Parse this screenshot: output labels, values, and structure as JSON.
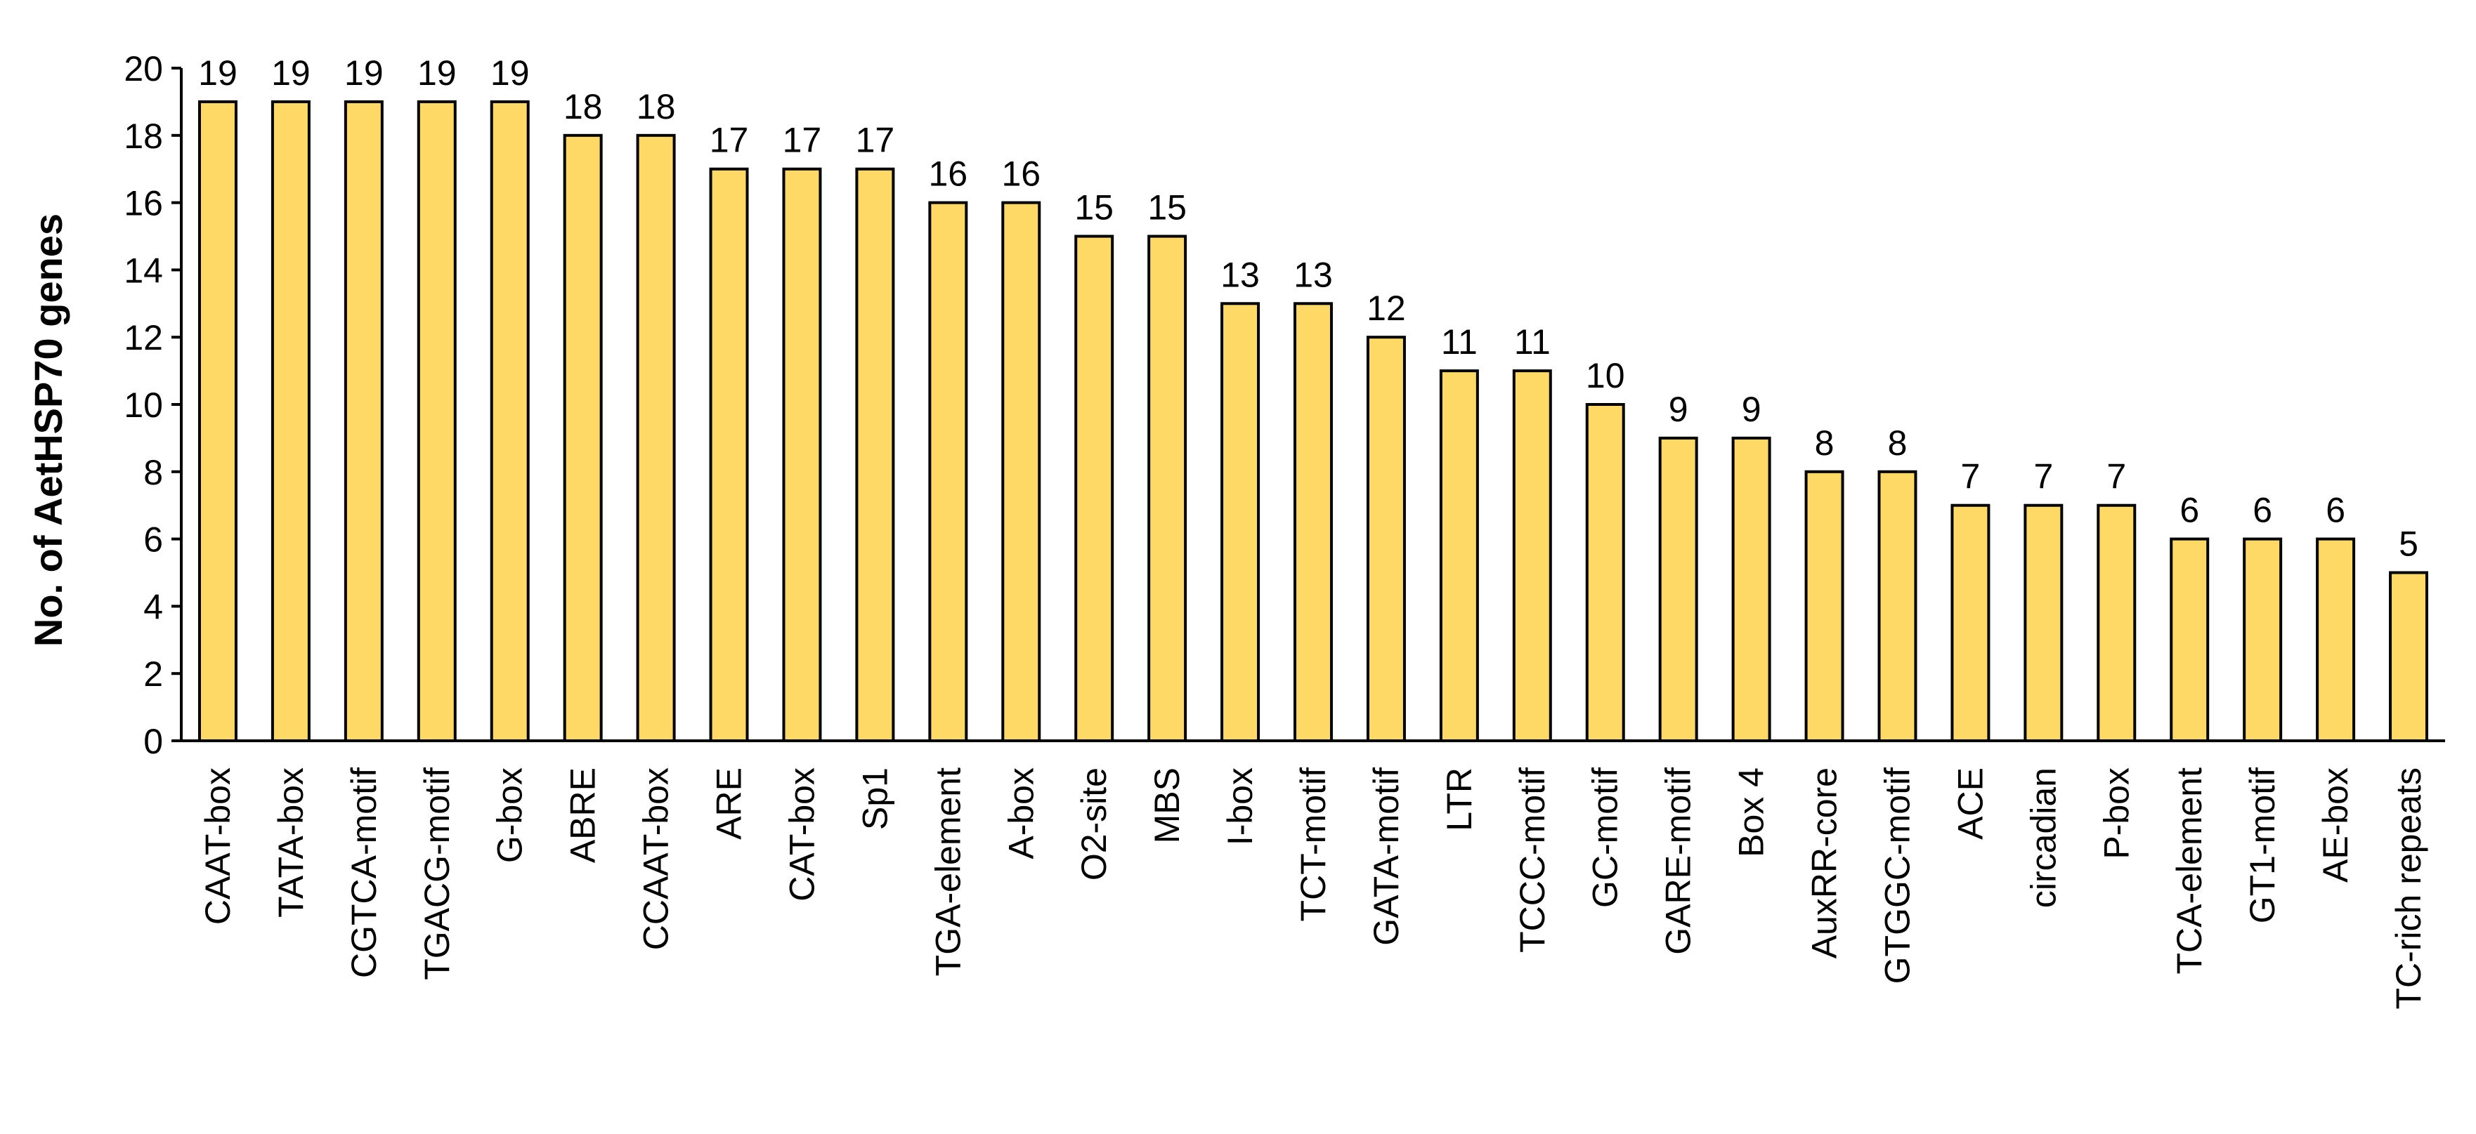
{
  "chart_data": {
    "type": "bar",
    "title": "",
    "xlabel": "",
    "ylabel": "No. of AetHSP70 genes",
    "ylim": [
      0,
      20
    ],
    "yticks": [
      0,
      2,
      4,
      6,
      8,
      10,
      12,
      14,
      16,
      18,
      20
    ],
    "grid": false,
    "legend": "none",
    "bar_color": "#FFD966",
    "bar_edge_color": "#000000",
    "categories": [
      "CAAT-box",
      "TATA-box",
      "CGTCA-motif",
      "TGACG-motif",
      "G-box",
      "ABRE",
      "CCAAT-box",
      "ARE",
      "CAT-box",
      "Sp1",
      "TGA-element",
      "A-box",
      "O2-site",
      "MBS",
      "I-box",
      "TCT-motif",
      "GATA-motif",
      "LTR",
      "TCCC-motif",
      "GC-motif",
      "GARE-motif",
      "Box 4",
      "AuxRR-core",
      "GTGGC-motif",
      "ACE",
      "circadian",
      "P-box",
      "TCA-element",
      "GT1-motif",
      "AE-box",
      "TC-rich repeats"
    ],
    "values": [
      19,
      19,
      19,
      19,
      19,
      18,
      18,
      17,
      17,
      17,
      16,
      16,
      15,
      15,
      13,
      13,
      12,
      11,
      11,
      10,
      9,
      9,
      8,
      8,
      7,
      7,
      7,
      6,
      6,
      6,
      5
    ]
  }
}
